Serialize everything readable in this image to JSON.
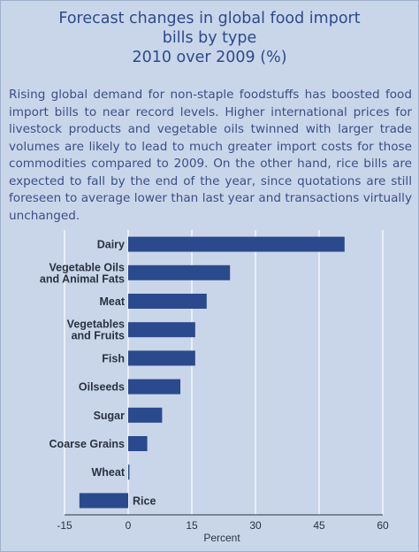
{
  "title_lines": [
    "Forecast changes in global food import",
    "bills by type",
    "2010 over 2009 (%)"
  ],
  "description": "Rising global demand for non-staple foodstuffs has boosted food import bills to near record levels. Higher international prices for livestock products and vegetable oils twinned with larger trade volumes are likely to lead to much greater import costs for those commodities compared to 2009. On the other hand, rice bills are expected to fall by the end of the year, since quotations are still foreseen to average lower than last  year and transactions virtually unchanged.",
  "colors": {
    "bar": "#2b4a8d",
    "grid": "#ffffff",
    "title": "#2c4a8c",
    "background": "#c9d6ea"
  },
  "chart_data": {
    "type": "bar",
    "orientation": "horizontal",
    "categories": [
      [
        "Dairy"
      ],
      [
        "Vegetable Oils",
        "and Animal Fats"
      ],
      [
        "Meat"
      ],
      [
        "Vegetables",
        "and Fruits"
      ],
      [
        "Fish"
      ],
      [
        "Oilseeds"
      ],
      [
        "Sugar"
      ],
      [
        "Coarse Grains"
      ],
      [
        "Wheat"
      ],
      [
        "Rice"
      ]
    ],
    "values": [
      51,
      24,
      18.5,
      15.8,
      15.8,
      12.3,
      8,
      4.5,
      0.3,
      -11.5
    ],
    "xlabel": "Percent",
    "xlim": [
      -15,
      60
    ],
    "xticks": [
      -15,
      0,
      15,
      30,
      45,
      60
    ],
    "grid": "vertical"
  }
}
